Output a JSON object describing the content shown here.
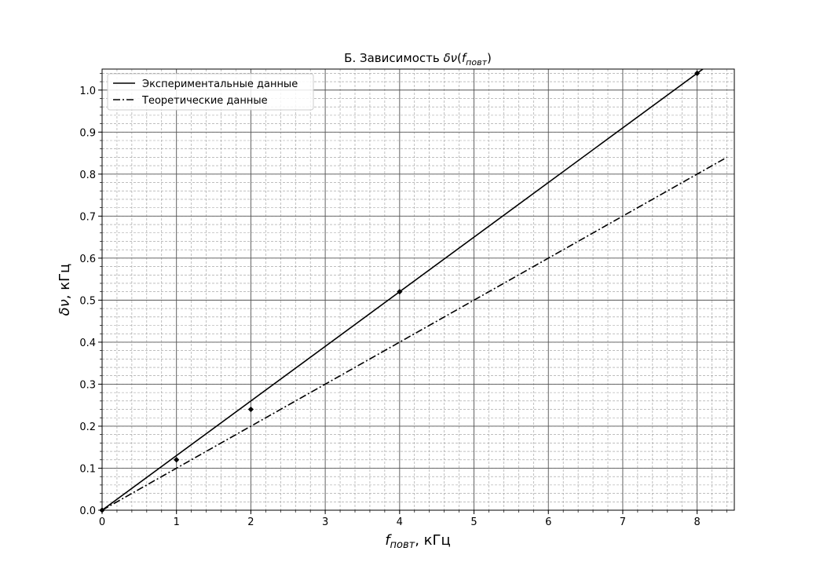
{
  "chart_data": {
    "type": "line",
    "title_prefix": "Б. Зависимость ",
    "title_math": "δν",
    "title_arg": "f",
    "title_arg_sub": "повт",
    "xlabel_var": "f",
    "xlabel_sub": "повт",
    "xlabel_unit": ", кГц",
    "ylabel_var": "δν",
    "ylabel_unit": ", кГц",
    "xlim": [
      0,
      8.5
    ],
    "ylim": [
      0,
      1.05
    ],
    "x_major_ticks": [
      0,
      1,
      2,
      3,
      4,
      5,
      6,
      7,
      8
    ],
    "x_minor_step": 0.2,
    "y_major_ticks": [
      0.0,
      0.1,
      0.2,
      0.3,
      0.4,
      0.5,
      0.6,
      0.7,
      0.8,
      0.9,
      1.0
    ],
    "y_minor_step": 0.02,
    "grid": true,
    "legend_position": "top-left",
    "measured_points": {
      "x": [
        0,
        1,
        2,
        4,
        8
      ],
      "y": [
        0.0,
        0.12,
        0.24,
        0.52,
        1.04
      ]
    },
    "series": [
      {
        "name": "Экспериментальные данные",
        "style": "solid",
        "slope": 0.13,
        "x_range": [
          0,
          8.5
        ]
      },
      {
        "name": "Теоретические данные",
        "style": "dashdot",
        "slope": 0.1,
        "x_range": [
          0,
          8.4
        ]
      }
    ]
  }
}
